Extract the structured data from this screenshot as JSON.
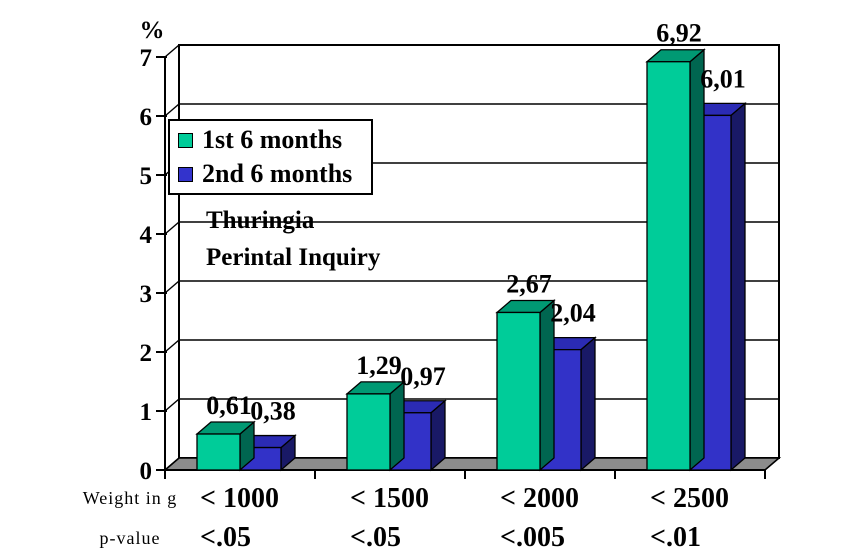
{
  "page": {
    "background": "#FFFFFF"
  },
  "legend": {
    "items": [
      {
        "label": "1st 6 months",
        "color": "#00CC99"
      },
      {
        "label": "2nd 6 months",
        "color": "#3333CC"
      }
    ]
  },
  "annotation": {
    "line1": "Thuringia",
    "line2": "Perintal Inquiry"
  },
  "chart_data": {
    "type": "bar",
    "style": "3d-column",
    "title": "",
    "ylabel": "%",
    "ylim": [
      0,
      7
    ],
    "yticks": [
      0,
      1,
      2,
      3,
      4,
      5,
      6,
      7
    ],
    "grid": true,
    "legend_position": "upper-left inside plot",
    "categories": [
      "< 1000",
      "< 1500",
      "< 2000",
      "< 2500"
    ],
    "x_row_label": "Weight in g",
    "p_row_label": "p-value",
    "p_values": [
      "<.05",
      "<.05",
      "<.005",
      "<.01"
    ],
    "series": [
      {
        "name": "1st 6 months",
        "values": [
          0.61,
          1.29,
          2.67,
          6.92
        ],
        "value_labels": [
          "0,61",
          "1,29",
          "2,67",
          "6,92"
        ],
        "colors": {
          "front": "#00CC99",
          "top": "#009973",
          "side": "#006650"
        }
      },
      {
        "name": "2nd 6 months",
        "values": [
          0.38,
          0.97,
          2.04,
          6.01
        ],
        "value_labels": [
          "0,38",
          "0,97",
          "2,04",
          "6,01"
        ],
        "colors": {
          "front": "#3232C8",
          "top": "#2B2BB4",
          "side": "#191966"
        }
      }
    ],
    "wall_color": "#FFFFFF",
    "floor_color": "#8C8C8C",
    "axis_color": "#000000"
  }
}
